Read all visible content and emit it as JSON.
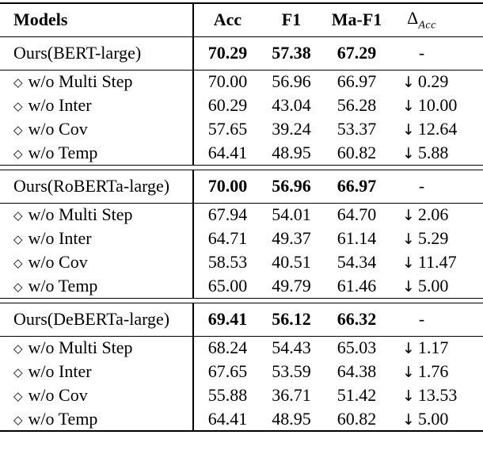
{
  "colors": {
    "text": "#000000",
    "background": "#ffffff",
    "rules": "#000000"
  },
  "glyphs": {
    "diamond": "◇",
    "down_arrow": "↓"
  },
  "table": {
    "header": {
      "models": "Models",
      "acc": "Acc",
      "f1": "F1",
      "maf1": "Ma-F1",
      "delta_symbol": "Δ",
      "delta_sub": "Acc"
    },
    "sections": [
      {
        "main": {
          "model": "Ours(BERT-large)",
          "acc": "70.29",
          "f1": "57.38",
          "maf1": "67.29",
          "delta": "-"
        },
        "ablations": [
          {
            "model": "w/o Multi Step",
            "acc": "70.00",
            "f1": "56.96",
            "maf1": "66.97",
            "delta": "0.29"
          },
          {
            "model": "w/o Inter",
            "acc": "60.29",
            "f1": "43.04",
            "maf1": "56.28",
            "delta": "10.00"
          },
          {
            "model": "w/o Cov",
            "acc": "57.65",
            "f1": "39.24",
            "maf1": "53.37",
            "delta": "12.64"
          },
          {
            "model": "w/o Temp",
            "acc": "64.41",
            "f1": "48.95",
            "maf1": "60.82",
            "delta": "5.88"
          }
        ]
      },
      {
        "main": {
          "model": "Ours(RoBERTa-large)",
          "acc": "70.00",
          "f1": "56.96",
          "maf1": "66.97",
          "delta": "-"
        },
        "ablations": [
          {
            "model": "w/o Multi Step",
            "acc": "67.94",
            "f1": "54.01",
            "maf1": "64.70",
            "delta": "2.06"
          },
          {
            "model": "w/o Inter",
            "acc": "64.71",
            "f1": "49.37",
            "maf1": "61.14",
            "delta": "5.29"
          },
          {
            "model": "w/o Cov",
            "acc": "58.53",
            "f1": "40.51",
            "maf1": "54.34",
            "delta": "11.47"
          },
          {
            "model": "w/o Temp",
            "acc": "65.00",
            "f1": "49.79",
            "maf1": "61.46",
            "delta": "5.00"
          }
        ]
      },
      {
        "main": {
          "model": "Ours(DeBERTa-large)",
          "acc": "69.41",
          "f1": "56.12",
          "maf1": "66.32",
          "delta": "-"
        },
        "ablations": [
          {
            "model": "w/o Multi Step",
            "acc": "68.24",
            "f1": "54.43",
            "maf1": "65.03",
            "delta": "1.17"
          },
          {
            "model": "w/o Inter",
            "acc": "67.65",
            "f1": "53.59",
            "maf1": "64.38",
            "delta": "1.76"
          },
          {
            "model": "w/o Cov",
            "acc": "55.88",
            "f1": "36.71",
            "maf1": "51.42",
            "delta": "13.53"
          },
          {
            "model": "w/o Temp",
            "acc": "64.41",
            "f1": "48.95",
            "maf1": "60.82",
            "delta": "5.00"
          }
        ]
      }
    ]
  }
}
